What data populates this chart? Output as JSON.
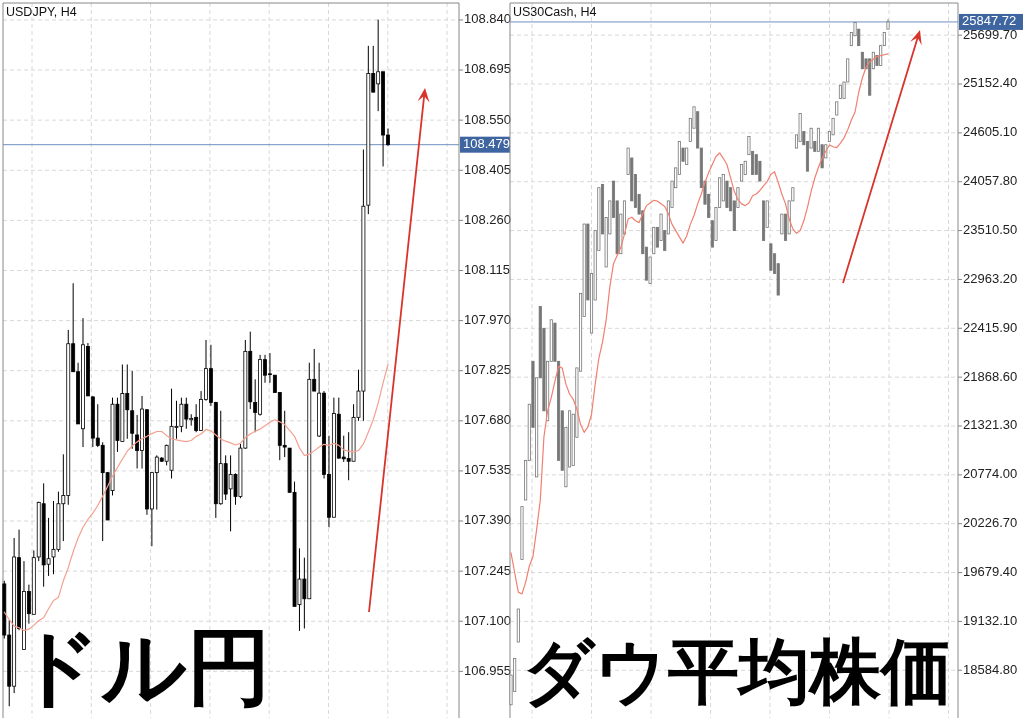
{
  "chart_data": [
    {
      "type": "candlestick",
      "title": "USDJPY, H4",
      "color": "#000000",
      "grid": true,
      "tick_labels": "y",
      "categories": [
        null,
        null,
        null,
        null,
        null,
        null,
        null,
        null,
        null,
        null,
        null,
        null,
        null,
        null,
        null,
        null,
        null,
        null,
        null,
        null,
        null,
        null,
        null,
        null,
        null,
        null,
        null,
        null,
        null,
        null,
        null,
        null,
        null,
        null,
        null,
        null,
        null,
        null,
        null,
        null,
        null,
        null,
        null,
        null,
        null,
        null,
        null,
        null,
        null,
        null,
        null,
        null,
        null,
        null,
        null,
        null,
        null,
        null,
        null,
        null,
        null,
        null,
        null,
        null,
        null,
        null,
        null,
        null,
        null,
        null,
        null,
        null,
        null,
        null,
        null,
        null,
        null,
        null,
        null
      ],
      "ohlc": [
        [
          107.208,
          107.217,
          107.05,
          107.06
        ],
        [
          107.06,
          107.103,
          106.854,
          106.912
        ],
        [
          106.912,
          107.341,
          106.892,
          107.286
        ],
        [
          107.284,
          107.365,
          107.074,
          107.079
        ],
        [
          107.018,
          107.274,
          107.018,
          107.186
        ],
        [
          107.186,
          107.206,
          107.093,
          107.122
        ],
        [
          107.12,
          107.305,
          107.12,
          107.284
        ],
        [
          107.286,
          107.446,
          107.274,
          107.444
        ],
        [
          107.44,
          107.499,
          107.2,
          107.263
        ],
        [
          107.265,
          107.399,
          107.231,
          107.281
        ],
        [
          107.286,
          107.448,
          107.236,
          107.308
        ],
        [
          107.308,
          107.475,
          107.301,
          107.44
        ],
        [
          107.44,
          107.583,
          107.332,
          107.464
        ],
        [
          107.464,
          107.943,
          107.437,
          107.903
        ],
        [
          107.903,
          108.078,
          107.822,
          107.822
        ],
        [
          107.822,
          107.848,
          107.671,
          107.671
        ],
        [
          107.657,
          107.977,
          107.604,
          107.9
        ],
        [
          107.895,
          107.905,
          107.752,
          107.752
        ],
        [
          107.749,
          107.752,
          107.604,
          107.63
        ],
        [
          107.63,
          107.728,
          107.604,
          107.609
        ],
        [
          107.609,
          107.618,
          107.332,
          107.53
        ],
        [
          107.53,
          107.532,
          107.393,
          107.393
        ],
        [
          107.478,
          107.747,
          107.464,
          107.728
        ],
        [
          107.728,
          107.747,
          107.59,
          107.623
        ],
        [
          107.62,
          107.843,
          107.62,
          107.759
        ],
        [
          107.759,
          107.843,
          107.628,
          107.712
        ],
        [
          107.709,
          107.824,
          107.599,
          107.644
        ],
        [
          107.639,
          107.697,
          107.542,
          107.594
        ],
        [
          107.594,
          107.752,
          107.542,
          107.714
        ],
        [
          107.712,
          107.714,
          107.408,
          107.425
        ],
        [
          107.425,
          107.532,
          107.317,
          107.53
        ],
        [
          107.53,
          107.58,
          107.423,
          107.575
        ],
        [
          107.572,
          107.575,
          107.561,
          107.563
        ],
        [
          107.563,
          107.611,
          107.551,
          107.609
        ],
        [
          107.537,
          107.773,
          107.513,
          107.664
        ],
        [
          107.661,
          107.738,
          107.628,
          107.664
        ],
        [
          107.664,
          107.747,
          107.647,
          107.728
        ],
        [
          107.728,
          107.747,
          107.657,
          107.685
        ],
        [
          107.683,
          107.699,
          107.666,
          107.687
        ],
        [
          107.69,
          107.728,
          107.647,
          107.652
        ],
        [
          107.652,
          107.766,
          107.652,
          107.742
        ],
        [
          107.742,
          107.914,
          107.738,
          107.831
        ],
        [
          107.831,
          107.9,
          107.723,
          107.733
        ],
        [
          107.733,
          107.735,
          107.399,
          107.44
        ],
        [
          107.44,
          107.709,
          107.437,
          107.556
        ],
        [
          107.556,
          107.58,
          107.451,
          107.468
        ],
        [
          107.483,
          107.58,
          107.36,
          107.525
        ],
        [
          107.525,
          107.528,
          107.437,
          107.461
        ],
        [
          107.461,
          107.613,
          107.456,
          107.601
        ],
        [
          107.601,
          107.914,
          107.599,
          107.881
        ],
        [
          107.881,
          107.938,
          107.714,
          107.735
        ],
        [
          107.733,
          107.8,
          107.647,
          107.704
        ],
        [
          107.699,
          107.871,
          107.695,
          107.857
        ],
        [
          107.857,
          107.871,
          107.79,
          107.812
        ],
        [
          107.816,
          107.876,
          107.79,
          107.814
        ],
        [
          107.812,
          107.812,
          107.762,
          107.762
        ],
        [
          107.762,
          107.762,
          107.566,
          107.609
        ],
        [
          107.609,
          107.709,
          107.575,
          107.604
        ],
        [
          107.601,
          107.601,
          107.473,
          107.473
        ],
        [
          107.473,
          107.504,
          107.143,
          107.143
        ],
        [
          107.148,
          107.311,
          107.072,
          107.222
        ],
        [
          107.222,
          107.284,
          107.079,
          107.165
        ],
        [
          107.165,
          107.848,
          107.165,
          107.8
        ],
        [
          107.8,
          107.888,
          107.766,
          107.766
        ],
        [
          107.636,
          107.848,
          107.633,
          107.76
        ],
        [
          107.76,
          107.766,
          107.513,
          107.525
        ],
        [
          107.525,
          107.637,
          107.372,
          107.401
        ],
        [
          107.401,
          107.747,
          107.401,
          107.701
        ],
        [
          107.699,
          107.747,
          107.571,
          107.572
        ],
        [
          107.575,
          107.637,
          107.561,
          107.57
        ],
        [
          107.571,
          107.647,
          107.508,
          107.563
        ],
        [
          107.563,
          107.728,
          107.563,
          107.69
        ],
        [
          107.69,
          107.828,
          107.68,
          107.766
        ],
        [
          107.766,
          108.465,
          107.68,
          108.301
        ],
        [
          108.304,
          108.765,
          108.278,
          108.685
        ],
        [
          108.685,
          108.765,
          108.631,
          108.631
        ],
        [
          108.655,
          108.841,
          108.576,
          108.69
        ],
        [
          108.69,
          108.69,
          108.416,
          108.507
        ],
        [
          108.507,
          108.526,
          108.476,
          108.479
        ]
      ],
      "series": [
        {
          "type": "line",
          "color": "#f4a090",
          "values": [
            107.126,
            107.105,
            107.086,
            107.081,
            107.073,
            107.077,
            107.088,
            107.102,
            107.11,
            107.136,
            107.16,
            107.169,
            107.217,
            107.255,
            107.301,
            107.341,
            107.372,
            107.395,
            107.413,
            107.435,
            107.462,
            107.49,
            107.52,
            107.545,
            107.569,
            107.592,
            107.607,
            107.619,
            107.628,
            107.635,
            107.643,
            107.649,
            107.649,
            107.637,
            107.628,
            107.625,
            107.622,
            107.62,
            107.623,
            107.635,
            107.642,
            107.655,
            107.651,
            107.639,
            107.627,
            107.621,
            107.616,
            107.61,
            107.615,
            107.632,
            107.642,
            107.65,
            107.656,
            107.666,
            107.676,
            107.683,
            107.677,
            107.669,
            107.652,
            107.635,
            107.602,
            107.58,
            107.583,
            107.593,
            107.604,
            107.612,
            107.609,
            107.615,
            107.609,
            107.596,
            107.592,
            107.59,
            107.594,
            107.613,
            107.647,
            107.683,
            107.731,
            107.79,
            107.843
          ]
        }
      ],
      "ylim": [
        106.82,
        108.889
      ],
      "yticks": [
        {
          "value": 108.84,
          "label": "108.840"
        },
        108.695,
        {
          "value": 108.55,
          "label": "108.550"
        },
        108.405,
        {
          "value": 108.26,
          "label": "108.260"
        },
        108.115,
        {
          "value": 107.97,
          "label": "107.970"
        },
        107.825,
        {
          "value": 107.68,
          "label": "107.680"
        },
        107.535,
        {
          "value": 107.39,
          "label": "107.390"
        },
        107.245,
        {
          "value": 107.1,
          "label": "107.100"
        },
        106.955
      ],
      "ref_lines": [
        {
          "axis": "y",
          "value": 108.479,
          "label": "108.479",
          "color": "#6f8fc0"
        }
      ],
      "annotations": [
        "ドル円"
      ]
    },
    {
      "type": "candlestick",
      "title": "US30Cash, H4",
      "color": "#777777",
      "grid": true,
      "tick_labels": "y",
      "categories": [
        null,
        null,
        null,
        null,
        null,
        null,
        null,
        null,
        null,
        null,
        null,
        null,
        null,
        null,
        null,
        null,
        null,
        null,
        null,
        null,
        null,
        null,
        null,
        null,
        null,
        null,
        null,
        null,
        null,
        null,
        null,
        null,
        null,
        null,
        null,
        null,
        null,
        null,
        null,
        null,
        null,
        null,
        null,
        null,
        null,
        null,
        null,
        null,
        null,
        null,
        null,
        null,
        null,
        null,
        null,
        null,
        null,
        null,
        null,
        null,
        null,
        null,
        null,
        null,
        null,
        null,
        null,
        null,
        null,
        null,
        null,
        null,
        null,
        null,
        null,
        null,
        null,
        null,
        null,
        null,
        null,
        null,
        null,
        null,
        null,
        null,
        null,
        null,
        null,
        null,
        null,
        null,
        null,
        null,
        null,
        null,
        null,
        null,
        null,
        null,
        null,
        null,
        null,
        null
      ],
      "ohlc": [
        [
          18198,
          18531,
          18198,
          18531
        ],
        [
          18346,
          18716,
          18346,
          18716
        ],
        [
          18901,
          19271,
          18901,
          19271
        ],
        [
          19826,
          20418,
          19826,
          20418
        ],
        [
          20492,
          20936,
          20492,
          20936
        ],
        [
          20936,
          21565,
          20936,
          21565
        ],
        [
          22046,
          22046,
          21306,
          21306
        ],
        [
          20751,
          21861,
          20751,
          21861
        ],
        [
          22659,
          22659,
          21861,
          21861
        ],
        [
          22416,
          22416,
          21491,
          21491
        ],
        [
          21380,
          22046,
          21380,
          22046
        ],
        [
          22046,
          22511,
          22046,
          22511
        ],
        [
          22474,
          22474,
          22046,
          22046
        ],
        [
          22046,
          22046,
          20936,
          20936
        ],
        [
          21491,
          21491,
          20825,
          20825
        ],
        [
          20640,
          21306,
          20640,
          21306
        ],
        [
          20862,
          21491,
          20862,
          21491
        ],
        [
          20880,
          21454,
          20880,
          21454
        ],
        [
          21195,
          21972,
          21195,
          21972
        ],
        [
          21935,
          22807,
          21935,
          22807
        ],
        [
          22548,
          23584,
          22548,
          23584
        ],
        [
          23584,
          23584,
          22733,
          22733
        ],
        [
          22363,
          23029,
          22363,
          23029
        ],
        [
          22733,
          23510,
          22733,
          23510
        ],
        [
          23288,
          23991,
          23288,
          23991
        ],
        [
          24028,
          24028,
          23473,
          23473
        ],
        [
          23103,
          23658,
          23103,
          23658
        ],
        [
          23473,
          23843,
          23473,
          23843
        ],
        [
          24065,
          24065,
          23658,
          23658
        ],
        [
          23843,
          23843,
          23251,
          23251
        ],
        [
          23251,
          23695,
          23251,
          23695
        ],
        [
          23473,
          23843,
          23473,
          23843
        ],
        [
          24139,
          24435,
          24139,
          24435
        ],
        [
          24324,
          24324,
          23843,
          23843
        ],
        [
          24139,
          24139,
          23769,
          23769
        ],
        [
          23917,
          23917,
          23695,
          23695
        ],
        [
          23732,
          23732,
          23251,
          23251
        ],
        [
          23325,
          23325,
          22955,
          22955
        ],
        [
          22918,
          23214,
          22918,
          23214
        ],
        [
          23251,
          23547,
          23251,
          23547
        ],
        [
          23547,
          23547,
          23325,
          23325
        ],
        [
          23399,
          23695,
          23399,
          23695
        ],
        [
          23510,
          23510,
          23288,
          23288
        ],
        [
          23473,
          23843,
          23473,
          23843
        ],
        [
          23769,
          24065,
          23769,
          24065
        ],
        [
          23991,
          24213,
          23991,
          24213
        ],
        [
          24139,
          24509,
          24139,
          24509
        ],
        [
          24435,
          24435,
          24287,
          24287
        ],
        [
          24250,
          24435,
          24250,
          24435
        ],
        [
          24509,
          24768,
          24509,
          24768
        ],
        [
          24657,
          24897,
          24657,
          24897
        ],
        [
          24842,
          24842,
          24435,
          24435
        ],
        [
          24435,
          24435,
          23991,
          23991
        ],
        [
          24065,
          24065,
          23806,
          23806
        ],
        [
          23917,
          23917,
          23658,
          23658
        ],
        [
          23621,
          23621,
          23325,
          23325
        ],
        [
          23399,
          23769,
          23399,
          23769
        ],
        [
          23769,
          24102,
          23769,
          24102
        ],
        [
          23843,
          24139,
          23843,
          24139
        ],
        [
          24065,
          24065,
          23769,
          23769
        ],
        [
          23991,
          23991,
          23732,
          23732
        ],
        [
          23843,
          23843,
          23510,
          23510
        ],
        [
          23769,
          23991,
          23769,
          23991
        ],
        [
          24065,
          24250,
          24065,
          24250
        ],
        [
          24139,
          24287,
          24139,
          24287
        ],
        [
          24361,
          24564,
          24361,
          24564
        ],
        [
          24398,
          24398,
          24139,
          24139
        ],
        [
          24361,
          24361,
          24139,
          24139
        ],
        [
          24287,
          24287,
          24065,
          24065
        ],
        [
          23843,
          23843,
          23399,
          23399
        ],
        [
          23547,
          23843,
          23547,
          23843
        ],
        [
          23362,
          23362,
          23066,
          23066
        ],
        [
          23251,
          23251,
          23029,
          23029
        ],
        [
          23140,
          23140,
          22788,
          22788
        ],
        [
          23473,
          23695,
          23473,
          23695
        ],
        [
          23695,
          23695,
          23399,
          23399
        ],
        [
          23473,
          23843,
          23473,
          23843
        ],
        [
          23843,
          23991,
          23843,
          23991
        ],
        [
          24435,
          24583,
          24435,
          24583
        ],
        [
          24509,
          24823,
          24509,
          24823
        ],
        [
          24620,
          24620,
          24472,
          24472
        ],
        [
          24509,
          24509,
          24176,
          24176
        ],
        [
          24435,
          24657,
          24435,
          24657
        ],
        [
          24509,
          24509,
          24398,
          24398
        ],
        [
          24398,
          24657,
          24398,
          24657
        ],
        [
          24472,
          24472,
          24213,
          24213
        ],
        [
          24324,
          24472,
          24324,
          24472
        ],
        [
          24509,
          24620,
          24509,
          24620
        ],
        [
          24583,
          24768,
          24583,
          24768
        ],
        [
          24805,
          24953,
          24805,
          24953
        ],
        [
          24990,
          25138,
          24990,
          25138
        ],
        [
          24990,
          25175,
          24990,
          25175
        ],
        [
          25175,
          25434,
          25175,
          25434
        ],
        [
          25582,
          25730,
          25582,
          25730
        ],
        [
          25693,
          25841,
          25693,
          25841
        ],
        [
          25767,
          25767,
          25582,
          25582
        ],
        [
          25508,
          25508,
          25323,
          25323
        ],
        [
          25434,
          25434,
          25323,
          25323
        ],
        [
          25434,
          25434,
          25027,
          25027
        ],
        [
          25323,
          25508,
          25323,
          25508
        ],
        [
          25471,
          25471,
          25360,
          25360
        ],
        [
          25360,
          25582,
          25360,
          25582
        ],
        [
          25582,
          25730,
          25582,
          25730
        ],
        [
          25767,
          25878,
          25767,
          25847.72
        ]
      ],
      "series": [
        {
          "type": "line",
          "color": "#f08070",
          "values": [
            19900,
            19680,
            19460,
            19440,
            19570,
            19750,
            19860,
            20160,
            20490,
            21200,
            21490,
            21640,
            21820,
            21990,
            21970,
            21790,
            21680,
            21620,
            21510,
            21340,
            21250,
            21310,
            21450,
            21790,
            22080,
            22260,
            22510,
            22880,
            23140,
            23230,
            23320,
            23470,
            23640,
            23660,
            23620,
            23600,
            23700,
            23790,
            23820,
            23850,
            23840,
            23810,
            23780,
            23700,
            23580,
            23510,
            23440,
            23370,
            23450,
            23580,
            23680,
            23810,
            23920,
            24050,
            24160,
            24250,
            24340,
            24380,
            24320,
            24250,
            24100,
            23950,
            23860,
            23810,
            23790,
            23820,
            23900,
            23920,
            23960,
            24010,
            24060,
            24140,
            24170,
            24050,
            23920,
            23810,
            23640,
            23530,
            23480,
            23510,
            23620,
            23770,
            23950,
            24100,
            24220,
            24320,
            24400,
            24470,
            24450,
            24440,
            24490,
            24550,
            24640,
            24750,
            24840,
            25060,
            25220,
            25340,
            25400,
            25430,
            25460,
            25470,
            25480,
            25490
          ]
        }
      ],
      "ylim": [
        18050,
        26060
      ],
      "yticks": [
        {
          "value": 25699.7,
          "label": "25699.70"
        },
        {
          "value": 25152.4,
          "label": "25152.40"
        },
        {
          "value": 24605.1,
          "label": "24605.10"
        },
        {
          "value": 24057.8,
          "label": "24057.80"
        },
        {
          "value": 23510.5,
          "label": "23510.50"
        },
        {
          "value": 22963.2,
          "label": "22963.20"
        },
        {
          "value": 22415.9,
          "label": "22415.90"
        },
        {
          "value": 21868.6,
          "label": "21868.60"
        },
        {
          "value": 21321.3,
          "label": "21321.30"
        },
        {
          "value": 20774,
          "label": "20774.00"
        },
        {
          "value": 20226.7,
          "label": "20226.70"
        },
        {
          "value": 19679.4,
          "label": "19679.40"
        },
        {
          "value": 19132.1,
          "label": "19132.10"
        },
        {
          "value": 18584.8,
          "label": "18584.80"
        }
      ],
      "ref_lines": [
        {
          "axis": "y",
          "value": 25847.72,
          "label": "25847.72",
          "color": "#6f8fc0"
        }
      ],
      "annotations": [
        "ダウ平均株価"
      ]
    }
  ]
}
